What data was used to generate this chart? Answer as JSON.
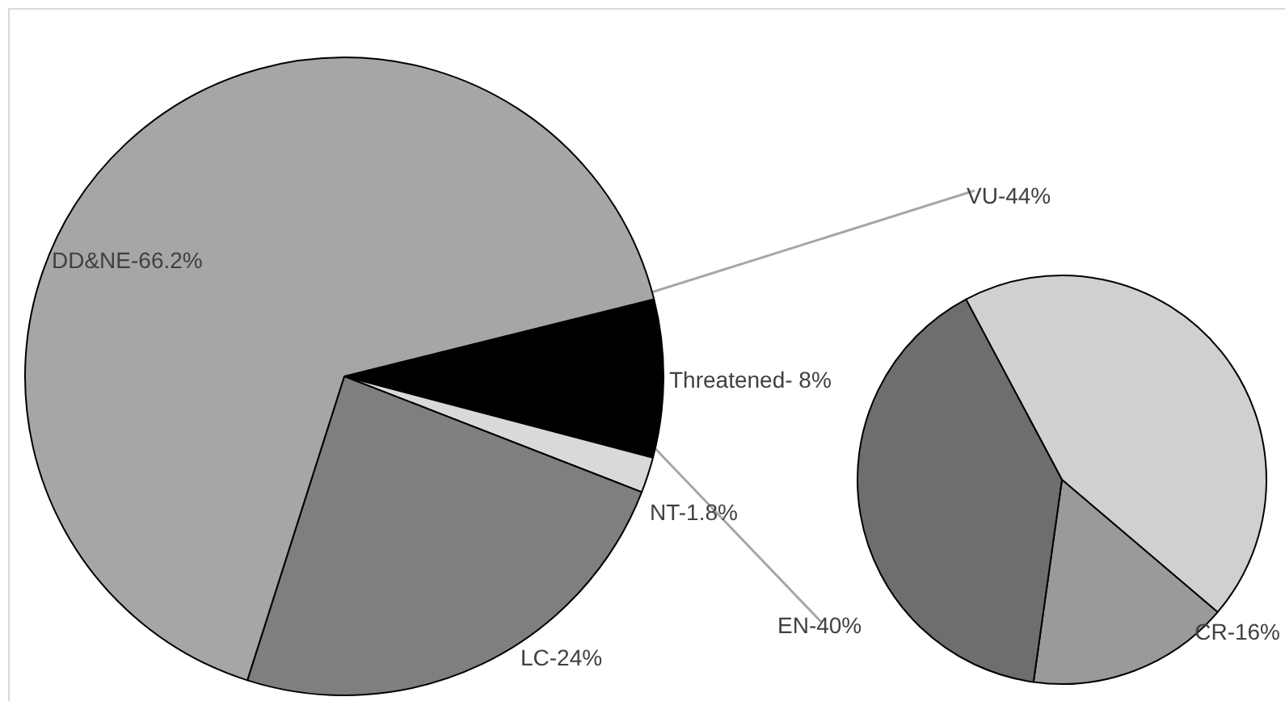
{
  "chart_data": [
    {
      "type": "pie",
      "categories": [
        "Threatened- 8%",
        "NT-1.8%",
        "LC-24%",
        "DD&NE-66.2%"
      ],
      "values": [
        8,
        1.8,
        24,
        66.2
      ],
      "colors": [
        "#000000",
        "#d9d9d9",
        "#7f7f7f",
        "#a6a6a6"
      ],
      "legend": false
    },
    {
      "type": "pie",
      "categories": [
        "VU-44%",
        "CR-16%",
        "EN-40%"
      ],
      "values": [
        44,
        16,
        40
      ],
      "colors": [
        "#d0d0d0",
        "#9a9a9a",
        "#6e6e6e"
      ],
      "legend": false
    }
  ]
}
